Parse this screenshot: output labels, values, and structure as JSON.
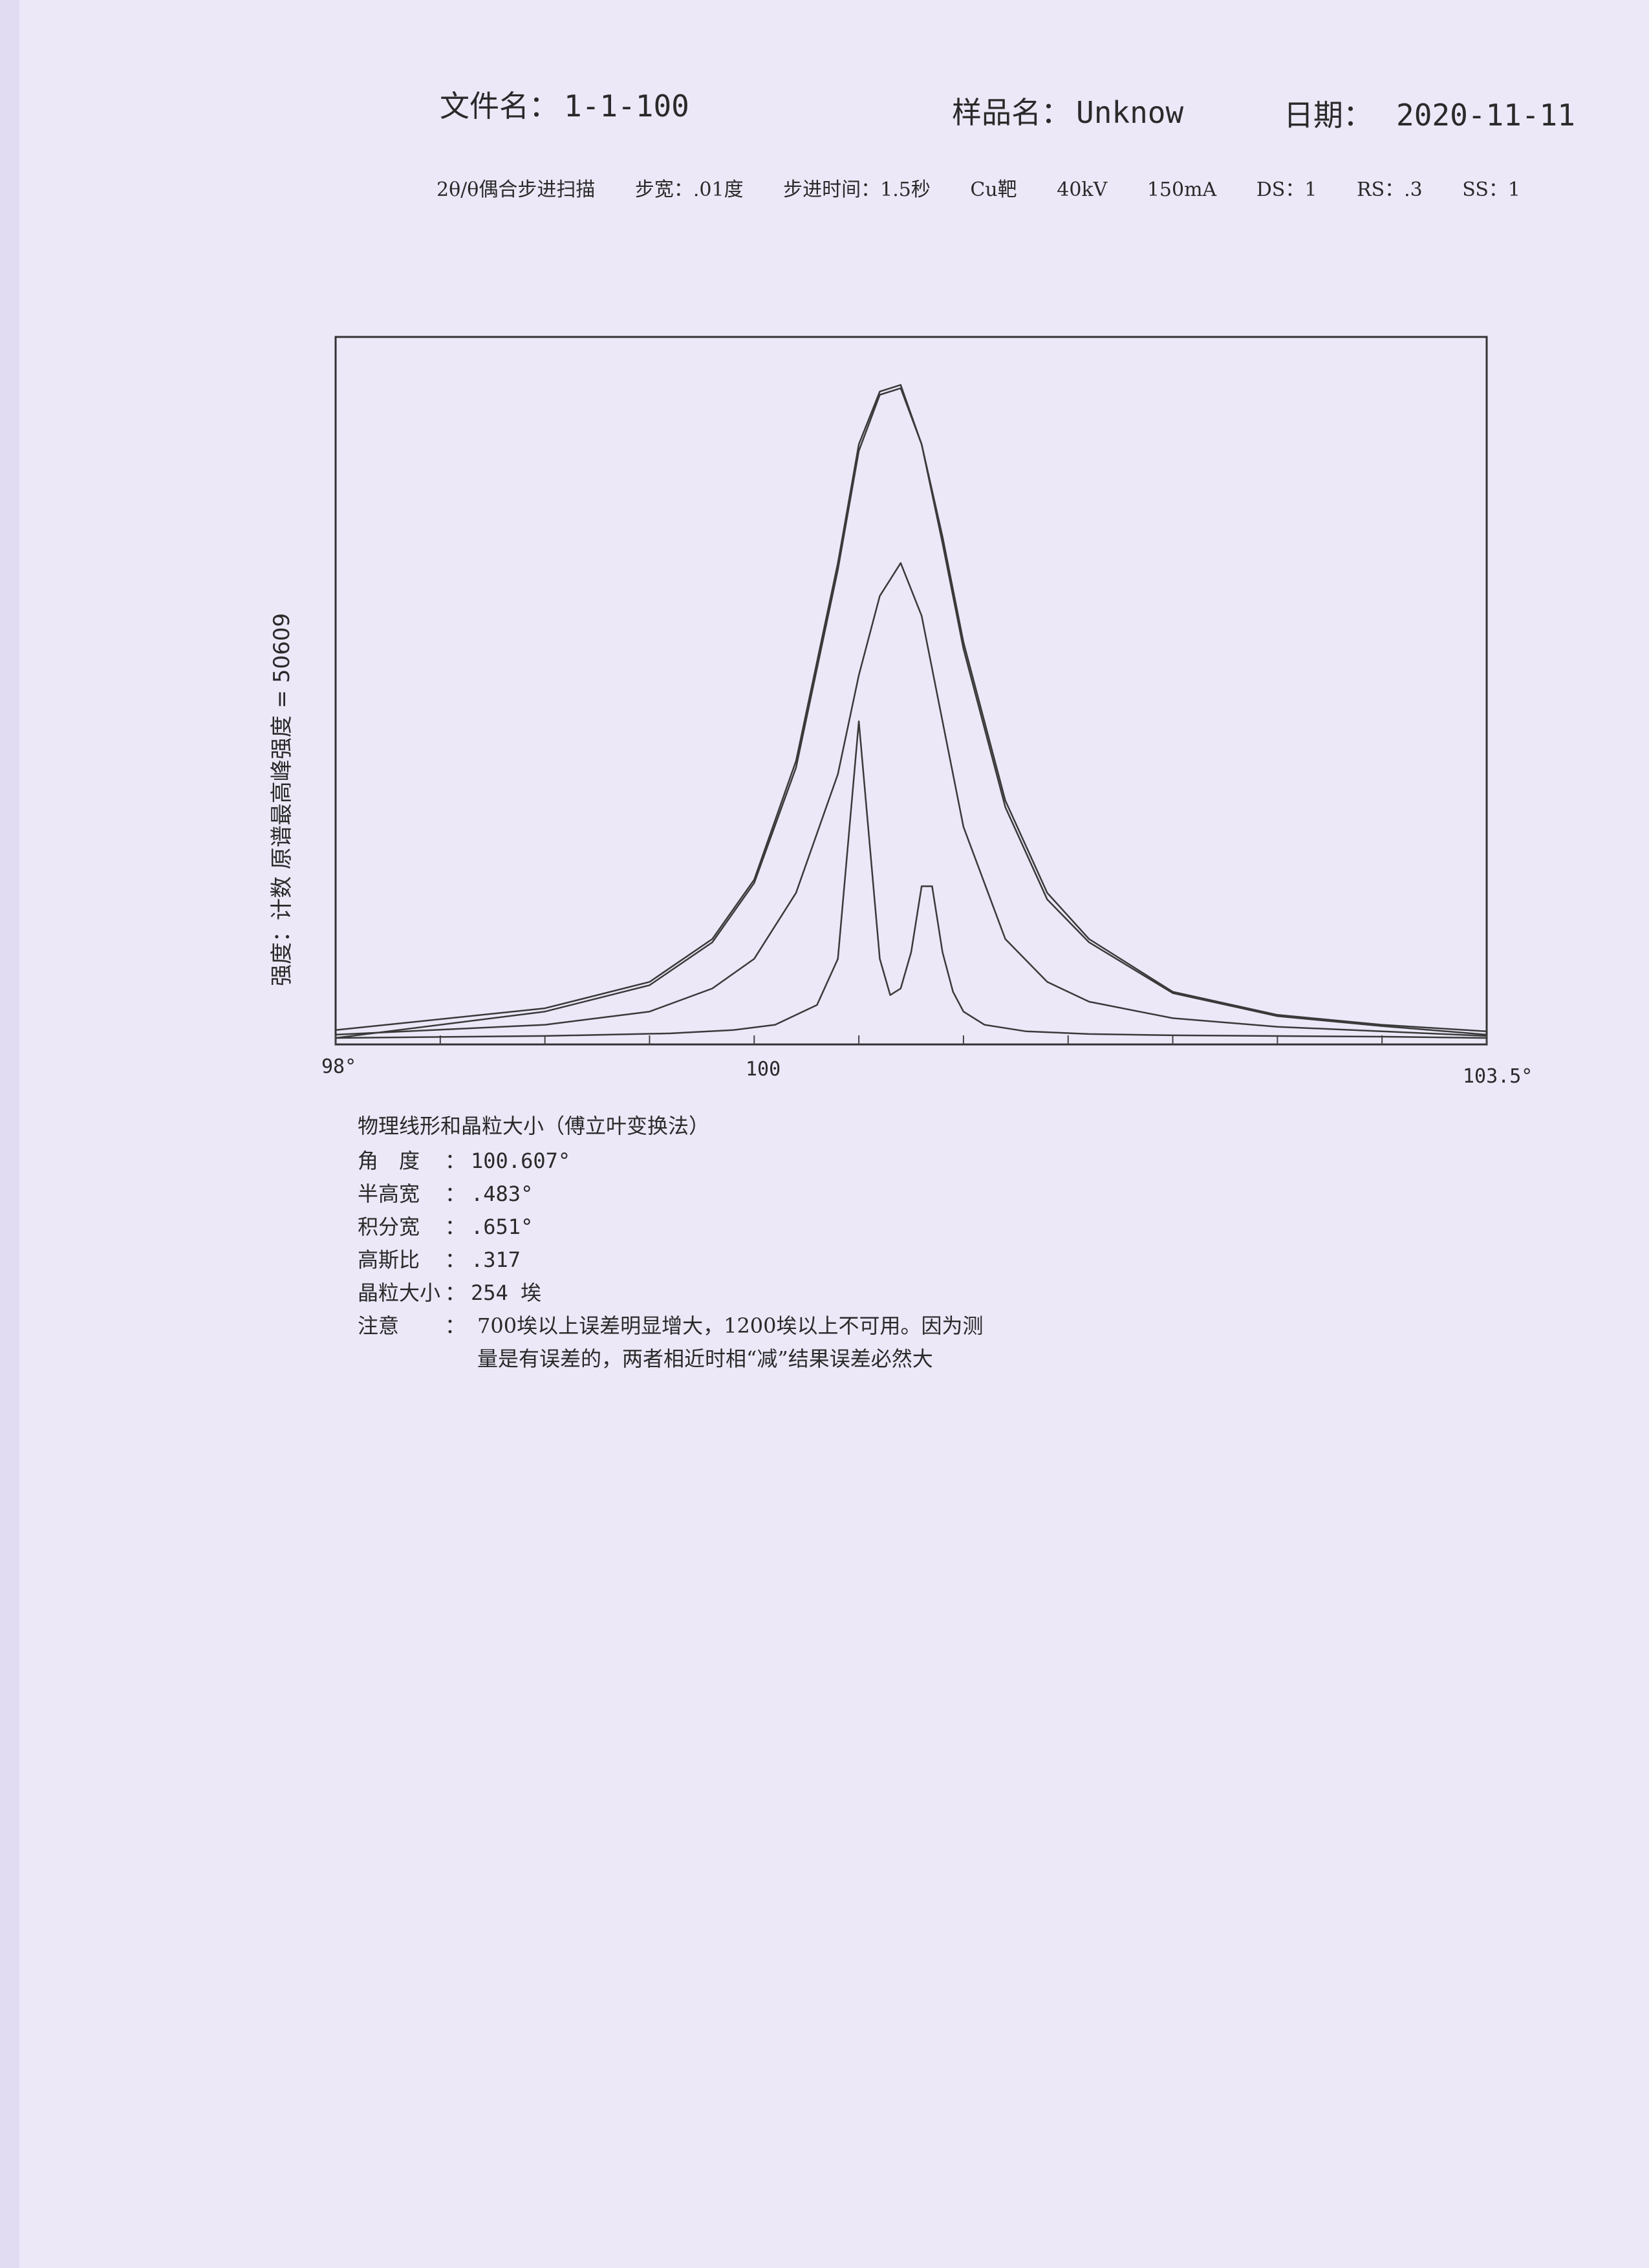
{
  "header": {
    "file_label": "文件名：",
    "file_value": "1-1-100",
    "sample_label": "样品名：",
    "sample_value": "Unknow",
    "date_label": "日期：",
    "date_value": "2020-11-11"
  },
  "scan_params": [
    "2θ/θ偶合步进扫描",
    "步宽：.01度",
    "步进时间：1.5秒",
    "Cu靶",
    "40kV",
    "150mA",
    "DS：1",
    "RS：.3",
    "SS：1"
  ],
  "chart_data": {
    "type": "line",
    "xlim": [
      98,
      103.5
    ],
    "x_tick_labels": [
      "98°",
      "100",
      "103.5°"
    ],
    "ylabel": "强度：计数    原谱最高峰强度 = 50609",
    "max_intensity": 50609,
    "series": [
      {
        "x": [
          98.0,
          99.0,
          99.5,
          99.8,
          100.0,
          100.2,
          100.4,
          100.5,
          100.6,
          100.7,
          100.8,
          100.9,
          101.0,
          101.2,
          101.4,
          101.6,
          102.0,
          102.5,
          103.0,
          103.5
        ],
        "y": [
          0.012,
          0.045,
          0.085,
          0.15,
          0.24,
          0.42,
          0.72,
          0.9,
          0.98,
          0.99,
          0.9,
          0.76,
          0.6,
          0.36,
          0.22,
          0.15,
          0.07,
          0.035,
          0.02,
          0.01
        ]
      },
      {
        "x": [
          98.0,
          99.0,
          99.5,
          99.8,
          100.0,
          100.2,
          100.4,
          100.5,
          100.6,
          100.7,
          100.8,
          100.9,
          101.0,
          101.2,
          101.4,
          101.6,
          102.0,
          102.5,
          103.0,
          103.5
        ],
        "y": [
          0.0,
          0.04,
          0.08,
          0.145,
          0.235,
          0.41,
          0.71,
          0.89,
          0.975,
          0.985,
          0.9,
          0.75,
          0.59,
          0.35,
          0.21,
          0.145,
          0.068,
          0.033,
          0.018,
          0.005
        ]
      },
      {
        "x": [
          98.0,
          99.0,
          99.5,
          99.8,
          100.0,
          100.2,
          100.4,
          100.5,
          100.6,
          100.7,
          100.8,
          100.9,
          101.0,
          101.2,
          101.4,
          101.6,
          102.0,
          102.5,
          103.0,
          103.5
        ],
        "y": [
          0.005,
          0.02,
          0.04,
          0.075,
          0.12,
          0.22,
          0.4,
          0.55,
          0.67,
          0.72,
          0.64,
          0.48,
          0.32,
          0.15,
          0.085,
          0.055,
          0.03,
          0.017,
          0.01,
          0.003
        ]
      },
      {
        "x": [
          98.0,
          99.0,
          99.6,
          99.9,
          100.1,
          100.3,
          100.4,
          100.45,
          100.5,
          100.55,
          100.6,
          100.65,
          100.7,
          100.75,
          100.8,
          100.85,
          100.9,
          100.95,
          101.0,
          101.1,
          101.3,
          101.6,
          102.0,
          103.0,
          103.5
        ],
        "y": [
          0.0,
          0.003,
          0.007,
          0.012,
          0.02,
          0.05,
          0.12,
          0.3,
          0.48,
          0.3,
          0.12,
          0.065,
          0.075,
          0.13,
          0.23,
          0.23,
          0.13,
          0.07,
          0.04,
          0.02,
          0.01,
          0.006,
          0.004,
          0.002,
          0.0
        ]
      }
    ]
  },
  "results": {
    "title": "物理线形和晶粒大小（傅立叶变换法）",
    "rows": [
      {
        "label": "角　度",
        "value": "100.607°"
      },
      {
        "label": "半高宽",
        "value": ".483°"
      },
      {
        "label": "积分宽",
        "value": ".651°"
      },
      {
        "label": "高斯比",
        "value": ".317"
      },
      {
        "label": "晶粒大小",
        "value": "254 埃"
      }
    ],
    "note_label": "注意",
    "note_lines": [
      "700埃以上误差明显增大，1200埃以上不可用。因为测",
      "量是有误差的，两者相近时相“减”结果误差必然大"
    ]
  }
}
